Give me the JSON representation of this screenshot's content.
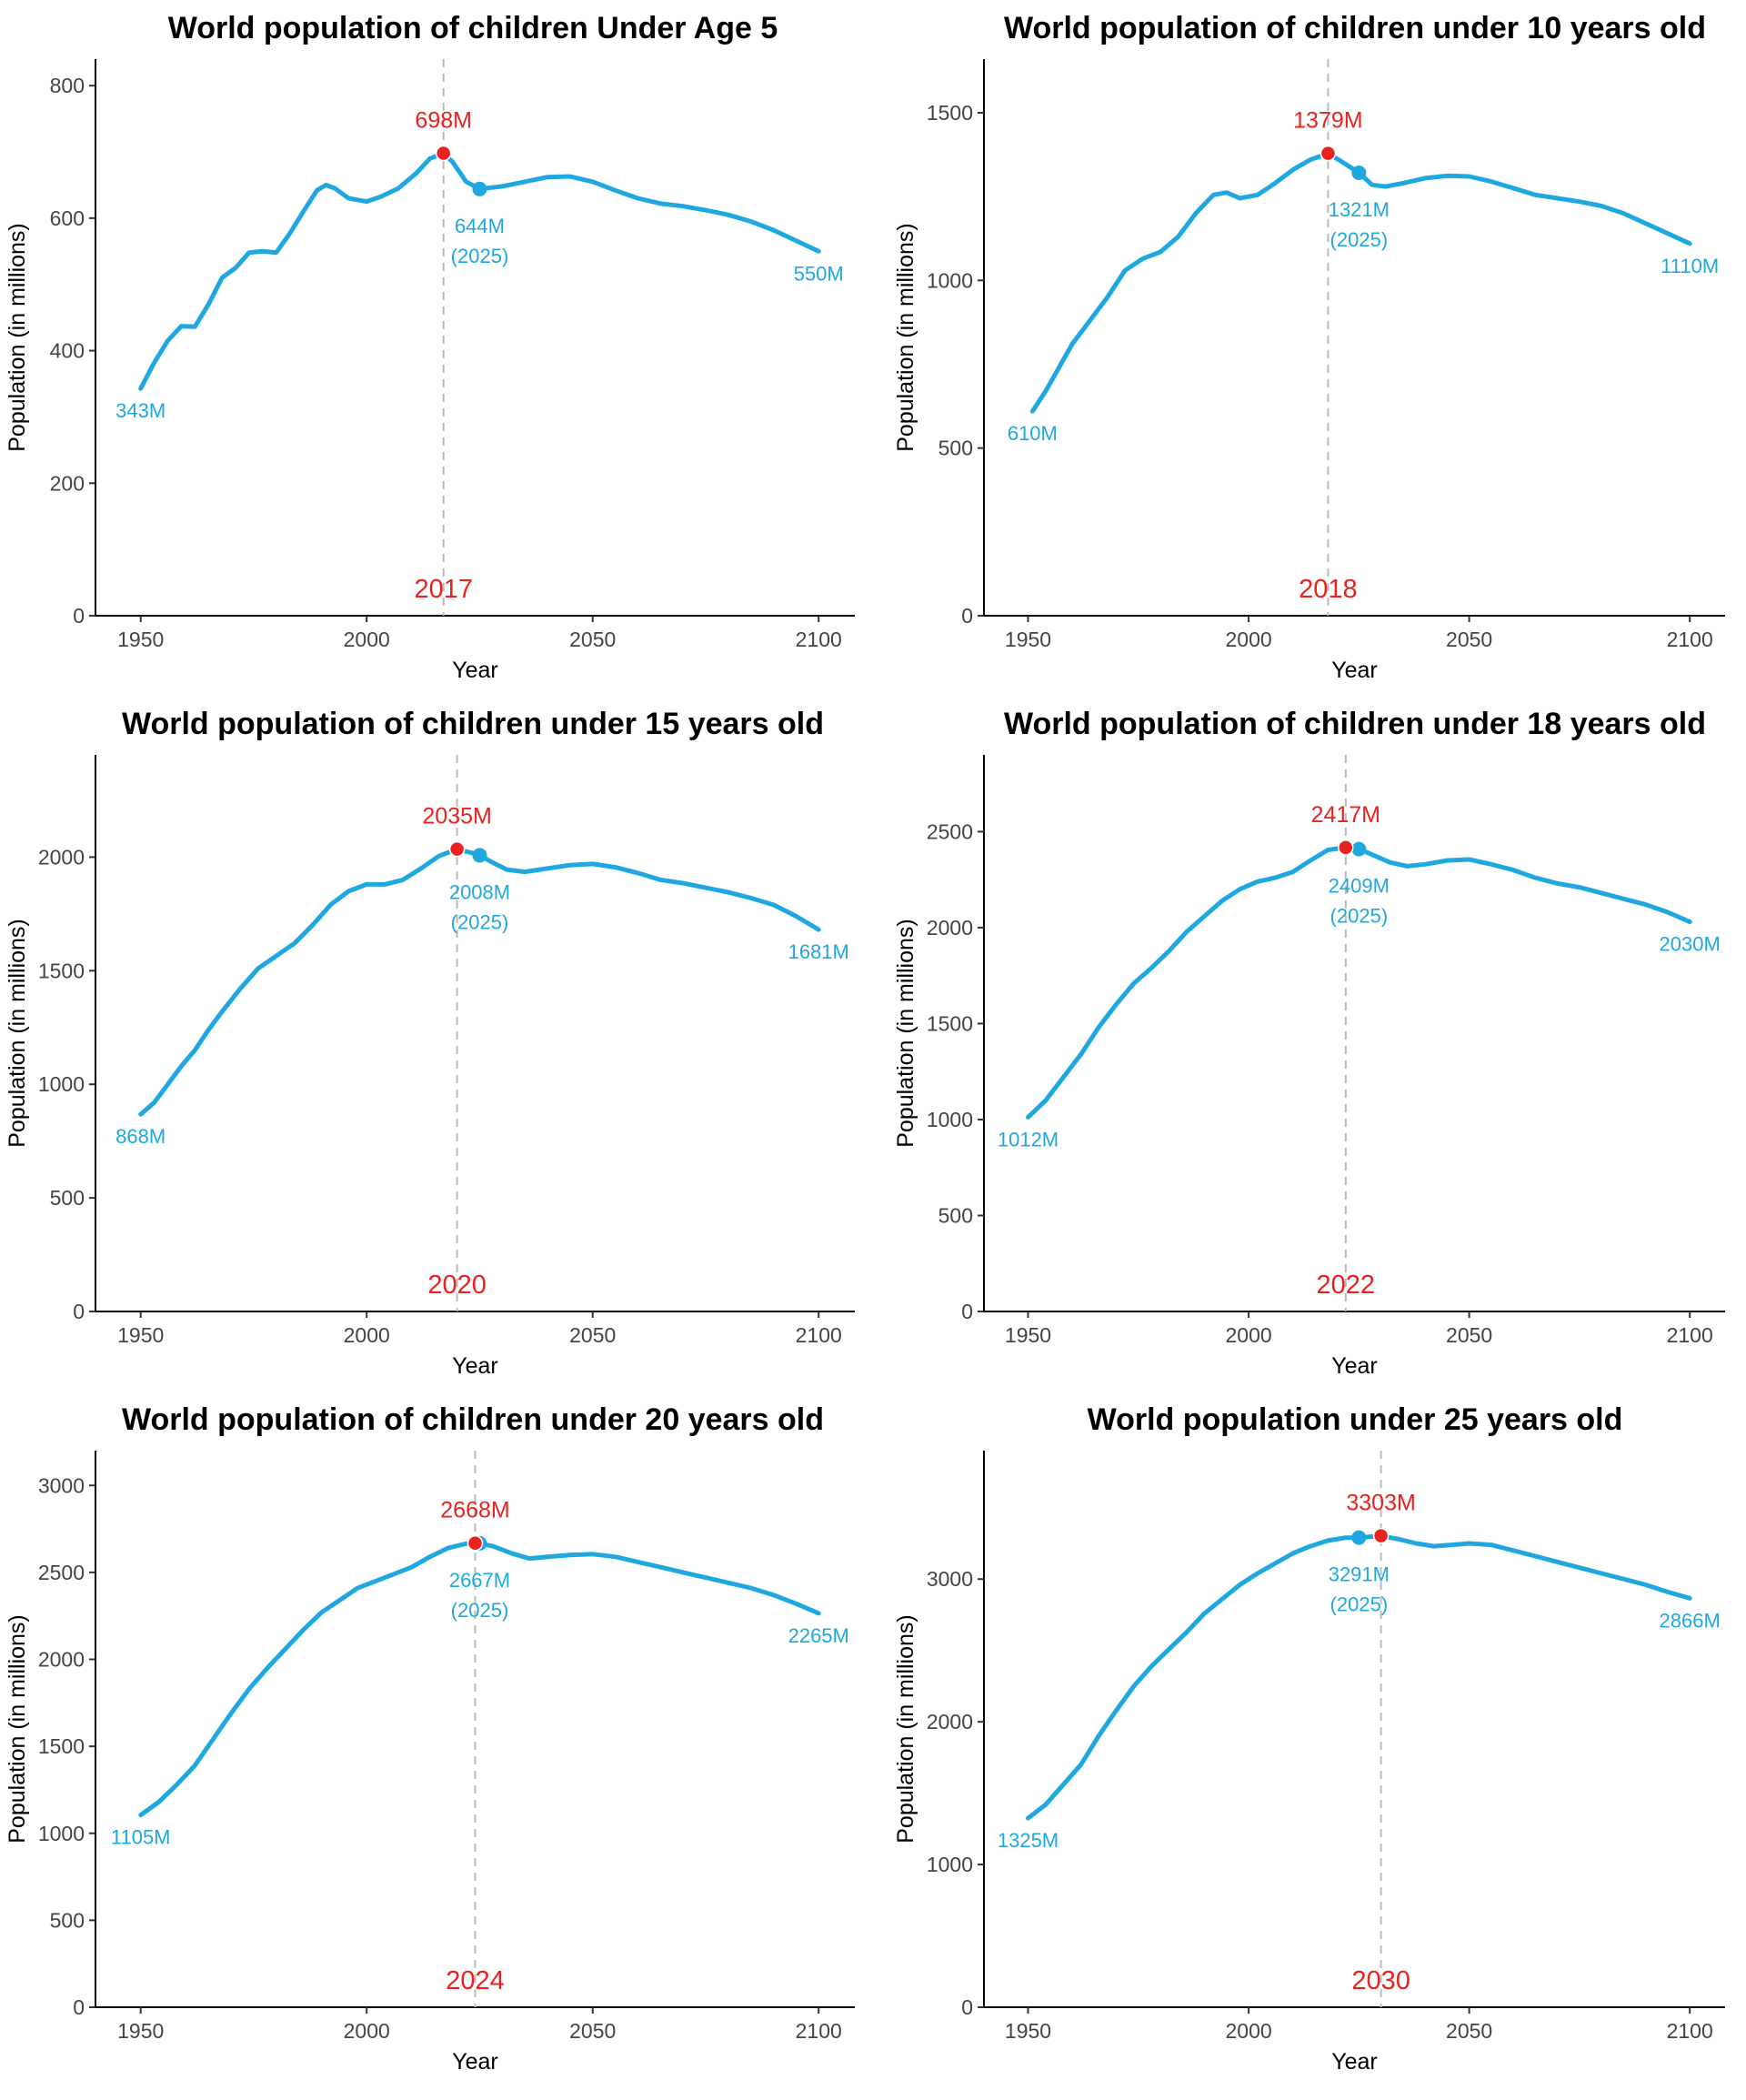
{
  "colors": {
    "series": "#1fa8e0",
    "peak": "#e8231f",
    "guide": "#bbbbbb"
  },
  "chart_data": [
    {
      "type": "line",
      "title": "World population of children Under Age 5",
      "xlabel": "Year",
      "ylabel": "Population (in millions)",
      "xlim": [
        1940,
        2108
      ],
      "ylim": [
        0,
        840
      ],
      "xticks": [
        1950,
        2000,
        2050,
        2100
      ],
      "yticks": [
        0,
        200,
        400,
        600,
        800
      ],
      "grid": false,
      "x": [
        1950,
        1953,
        1956,
        1959,
        1962,
        1965,
        1968,
        1971,
        1974,
        1977,
        1980,
        1983,
        1986,
        1989,
        1991,
        1993,
        1996,
        2000,
        2003,
        2007,
        2011,
        2014,
        2017,
        2019,
        2022,
        2025,
        2030,
        2035,
        2040,
        2045,
        2050,
        2055,
        2060,
        2065,
        2070,
        2075,
        2080,
        2085,
        2090,
        2095,
        2100
      ],
      "values": [
        343,
        382,
        415,
        437,
        436,
        470,
        510,
        525,
        548,
        550,
        548,
        577,
        610,
        642,
        650,
        645,
        630,
        625,
        632,
        645,
        668,
        690,
        698,
        685,
        655,
        644,
        648,
        655,
        662,
        663,
        655,
        642,
        630,
        622,
        618,
        612,
        605,
        595,
        582,
        566,
        550
      ],
      "start_label": "343M",
      "end_label": "550M",
      "peak": {
        "year": 2017,
        "value": 698,
        "label": "698M",
        "year_label": "2017"
      },
      "current": {
        "year": 2025,
        "value": 644,
        "label": "644M",
        "year_label": "(2025)"
      }
    },
    {
      "type": "line",
      "title": "World population of children under 10 years old",
      "xlabel": "Year",
      "ylabel": "Population (in millions)",
      "xlim": [
        1940,
        2108
      ],
      "ylim": [
        0,
        1660
      ],
      "xticks": [
        1950,
        2000,
        2050,
        2100
      ],
      "yticks": [
        0,
        500,
        1000,
        1500
      ],
      "grid": false,
      "x": [
        1951,
        1954,
        1957,
        1960,
        1964,
        1968,
        1972,
        1976,
        1980,
        1984,
        1988,
        1992,
        1995,
        1998,
        2002,
        2006,
        2010,
        2014,
        2018,
        2021,
        2025,
        2028,
        2031,
        2035,
        2040,
        2045,
        2050,
        2055,
        2060,
        2065,
        2070,
        2075,
        2080,
        2085,
        2090,
        2095,
        2100
      ],
      "values": [
        610,
        670,
        740,
        810,
        880,
        950,
        1030,
        1065,
        1085,
        1130,
        1200,
        1255,
        1262,
        1245,
        1255,
        1290,
        1330,
        1360,
        1379,
        1355,
        1321,
        1285,
        1280,
        1290,
        1305,
        1312,
        1310,
        1295,
        1275,
        1255,
        1245,
        1235,
        1222,
        1200,
        1170,
        1140,
        1110
      ],
      "start_label": "610M",
      "end_label": "1110M",
      "peak": {
        "year": 2018,
        "value": 1379,
        "label": "1379M",
        "year_label": "2018"
      },
      "current": {
        "year": 2025,
        "value": 1321,
        "label": "1321M",
        "year_label": "(2025)"
      }
    },
    {
      "type": "line",
      "title": "World population of children under 15 years old",
      "xlabel": "Year",
      "ylabel": "Population (in millions)",
      "xlim": [
        1950,
        2108
      ],
      "ylim": [
        0,
        2450
      ],
      "xticks": [
        1950,
        2000,
        2050,
        2100
      ],
      "yticks": [
        0,
        500,
        1000,
        1500,
        2000
      ],
      "grid": false,
      "x": [
        1950,
        1953,
        1956,
        1959,
        1962,
        1965,
        1968,
        1972,
        1976,
        1980,
        1984,
        1988,
        1992,
        1996,
        2000,
        2004,
        2008,
        2012,
        2016,
        2020,
        2023,
        2025,
        2028,
        2031,
        2035,
        2040,
        2045,
        2050,
        2055,
        2060,
        2065,
        2070,
        2075,
        2080,
        2085,
        2090,
        2095,
        2100
      ],
      "values": [
        868,
        920,
        1000,
        1080,
        1150,
        1240,
        1320,
        1420,
        1510,
        1565,
        1620,
        1700,
        1790,
        1850,
        1880,
        1880,
        1900,
        1950,
        2005,
        2035,
        2020,
        2008,
        1975,
        1945,
        1935,
        1950,
        1965,
        1970,
        1955,
        1930,
        1900,
        1885,
        1865,
        1845,
        1820,
        1790,
        1740,
        1681
      ],
      "start_label": "868M",
      "end_label": "1681M",
      "peak": {
        "year": 2020,
        "value": 2035,
        "label": "2035M",
        "year_label": "2020"
      },
      "current": {
        "year": 2025,
        "value": 2008,
        "label": "2008M",
        "year_label": "(2025)"
      }
    },
    {
      "type": "line",
      "title": "World population of children under 18 years old",
      "xlabel": "Year",
      "ylabel": "Population (in millions)",
      "xlim": [
        1940,
        2108
      ],
      "ylim": [
        0,
        2900
      ],
      "xticks": [
        1950,
        2000,
        2050,
        2100
      ],
      "yticks": [
        0,
        500,
        1000,
        1500,
        2000,
        2500
      ],
      "grid": false,
      "x": [
        1950,
        1954,
        1958,
        1962,
        1966,
        1970,
        1974,
        1978,
        1982,
        1986,
        1990,
        1994,
        1998,
        2002,
        2006,
        2010,
        2014,
        2018,
        2022,
        2025,
        2028,
        2032,
        2036,
        2040,
        2045,
        2050,
        2055,
        2060,
        2065,
        2070,
        2075,
        2080,
        2085,
        2090,
        2095,
        2100
      ],
      "values": [
        1012,
        1100,
        1220,
        1340,
        1480,
        1600,
        1710,
        1790,
        1880,
        1980,
        2060,
        2140,
        2200,
        2240,
        2260,
        2290,
        2350,
        2405,
        2417,
        2409,
        2380,
        2340,
        2320,
        2330,
        2350,
        2355,
        2330,
        2300,
        2260,
        2230,
        2210,
        2180,
        2150,
        2120,
        2080,
        2030
      ],
      "start_label": "1012M",
      "end_label": "2030M",
      "peak": {
        "year": 2022,
        "value": 2417,
        "label": "2417M",
        "year_label": "2022"
      },
      "current": {
        "year": 2025,
        "value": 2409,
        "label": "2409M",
        "year_label": "(2025)"
      }
    },
    {
      "type": "line",
      "title": "World population of children under 20 years old",
      "xlabel": "Year",
      "ylabel": "Population (in millions)",
      "xlim": [
        1950,
        2108
      ],
      "ylim": [
        0,
        3200
      ],
      "xticks": [
        1950,
        2000,
        2050,
        2100
      ],
      "yticks": [
        0,
        500,
        1000,
        1500,
        2000,
        2500,
        3000
      ],
      "grid": false,
      "x": [
        1950,
        1954,
        1958,
        1962,
        1966,
        1970,
        1974,
        1978,
        1982,
        1986,
        1990,
        1994,
        1998,
        2002,
        2006,
        2010,
        2014,
        2018,
        2022,
        2024,
        2025,
        2028,
        2032,
        2036,
        2040,
        2045,
        2050,
        2055,
        2060,
        2065,
        2070,
        2075,
        2080,
        2085,
        2090,
        2095,
        2100
      ],
      "values": [
        1105,
        1180,
        1280,
        1390,
        1540,
        1690,
        1830,
        1950,
        2060,
        2170,
        2270,
        2340,
        2410,
        2450,
        2490,
        2530,
        2590,
        2640,
        2665,
        2668,
        2667,
        2650,
        2610,
        2580,
        2590,
        2600,
        2605,
        2590,
        2560,
        2530,
        2500,
        2470,
        2440,
        2410,
        2370,
        2320,
        2265
      ],
      "start_label": "1105M",
      "end_label": "2265M",
      "peak": {
        "year": 2024,
        "value": 2668,
        "label": "2668M",
        "year_label": "2024"
      },
      "current": {
        "year": 2025,
        "value": 2667,
        "label": "2667M",
        "year_label": "(2025)"
      }
    },
    {
      "type": "line",
      "title": "World population under 25 years old",
      "xlabel": "Year",
      "ylabel": "Population (in millions)",
      "xlim": [
        1940,
        2108
      ],
      "ylim": [
        0,
        3900
      ],
      "xticks": [
        1950,
        2000,
        2050,
        2100
      ],
      "yticks": [
        0,
        1000,
        2000,
        3000
      ],
      "grid": false,
      "x": [
        1950,
        1954,
        1958,
        1962,
        1966,
        1970,
        1974,
        1978,
        1982,
        1986,
        1990,
        1994,
        1998,
        2002,
        2006,
        2010,
        2014,
        2018,
        2022,
        2025,
        2030,
        2034,
        2038,
        2042,
        2046,
        2050,
        2055,
        2060,
        2065,
        2070,
        2075,
        2080,
        2085,
        2090,
        2095,
        2100
      ],
      "values": [
        1325,
        1420,
        1560,
        1700,
        1900,
        2080,
        2250,
        2390,
        2510,
        2630,
        2760,
        2860,
        2960,
        3040,
        3110,
        3180,
        3230,
        3270,
        3290,
        3291,
        3303,
        3280,
        3250,
        3230,
        3240,
        3250,
        3240,
        3200,
        3160,
        3120,
        3080,
        3040,
        3000,
        2960,
        2910,
        2866
      ],
      "start_label": "1325M",
      "end_label": "2866M",
      "peak": {
        "year": 2030,
        "value": 3303,
        "label": "3303M",
        "year_label": "2030"
      },
      "current": {
        "year": 2025,
        "value": 3291,
        "label": "3291M",
        "year_label": "(2025)"
      }
    }
  ]
}
